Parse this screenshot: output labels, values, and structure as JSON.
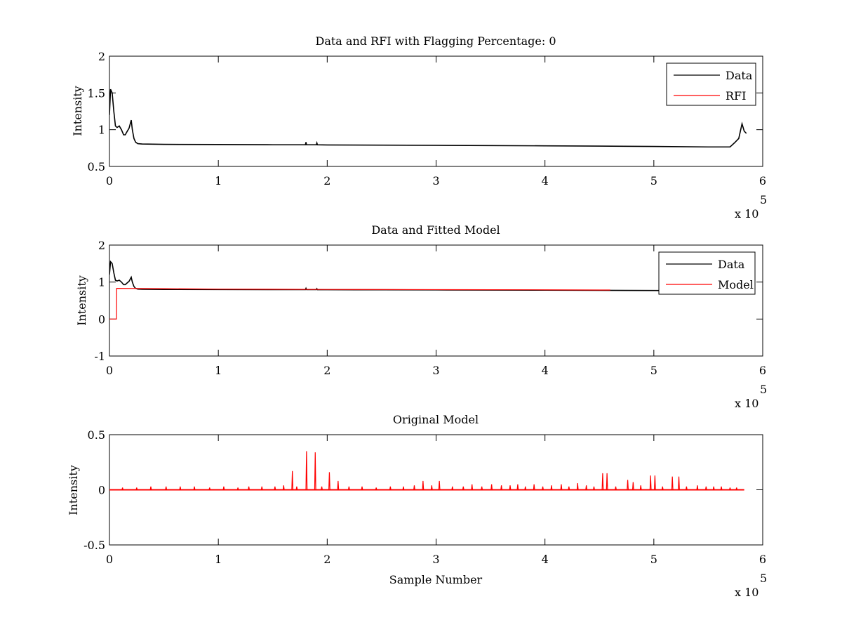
{
  "figure": {
    "background": "#ffffff",
    "axis_color": "#000000"
  },
  "chart_data": [
    {
      "type": "line",
      "title": "Data and RFI with Flagging Percentage: 0",
      "xlabel": "",
      "ylabel": "Intensity",
      "xlim": [
        0,
        600000
      ],
      "ylim": [
        0.5,
        2
      ],
      "xticks": [
        0,
        1,
        2,
        3,
        4,
        5,
        6
      ],
      "xtick_labels": [
        "0",
        "1",
        "2",
        "3",
        "4",
        "5",
        "6"
      ],
      "yticks": [
        0.5,
        1,
        1.5,
        2
      ],
      "ytick_labels": [
        "0.5",
        "1",
        "1.5",
        "2"
      ],
      "x_exponent": {
        "base": "x 10",
        "power": "5"
      },
      "grid": false,
      "legend_position": "top-right",
      "legend": [
        {
          "name": "Data",
          "color": "#000000"
        },
        {
          "name": "RFI",
          "color": "#ff0000"
        }
      ],
      "series": [
        {
          "name": "Data",
          "color": "#000000",
          "x": [
            0,
            1000,
            2500,
            4000,
            5500,
            7000,
            9000,
            11000,
            13000,
            14500,
            16000,
            18000,
            20000,
            21000,
            22500,
            24000,
            26000,
            30000,
            50000,
            100000,
            150000,
            180000,
            180500,
            181000,
            190000,
            190500,
            191000,
            200000,
            250000,
            300000,
            350000,
            400000,
            450000,
            500000,
            550000,
            570000,
            574000,
            578000,
            581000,
            583000,
            585000
          ],
          "y": [
            1.2,
            1.55,
            1.5,
            1.25,
            1.05,
            1.03,
            1.05,
            1.0,
            0.93,
            0.93,
            0.97,
            1.02,
            1.13,
            1.0,
            0.88,
            0.83,
            0.81,
            0.805,
            0.8,
            0.798,
            0.795,
            0.795,
            0.83,
            0.795,
            0.795,
            0.82,
            0.794,
            0.792,
            0.79,
            0.787,
            0.784,
            0.78,
            0.776,
            0.772,
            0.765,
            0.765,
            0.82,
            0.88,
            1.08,
            0.98,
            0.95
          ]
        }
      ]
    },
    {
      "type": "line",
      "title": "Data and Fitted Model",
      "xlabel": "",
      "ylabel": "Intensity",
      "xlim": [
        0,
        600000
      ],
      "ylim": [
        -1,
        2
      ],
      "xticks": [
        0,
        1,
        2,
        3,
        4,
        5,
        6
      ],
      "xtick_labels": [
        "0",
        "1",
        "2",
        "3",
        "4",
        "5",
        "6"
      ],
      "yticks": [
        -1,
        0,
        1,
        2
      ],
      "ytick_labels": [
        "-1",
        "0",
        "1",
        "2"
      ],
      "x_exponent": {
        "base": "x 10",
        "power": "5"
      },
      "grid": false,
      "legend_position": "top-right",
      "legend": [
        {
          "name": "Data",
          "color": "#000000"
        },
        {
          "name": "Model",
          "color": "#ff0000"
        }
      ],
      "series": [
        {
          "name": "Data",
          "color": "#000000",
          "x": [
            0,
            1000,
            2500,
            4000,
            5500,
            7000,
            9000,
            11000,
            13000,
            14500,
            16000,
            18000,
            20000,
            21000,
            22500,
            24000,
            26000,
            30000,
            50000,
            100000,
            150000,
            180000,
            180500,
            181000,
            190000,
            190500,
            191000,
            200000,
            250000,
            300000,
            350000,
            400000,
            450000,
            500000,
            550000
          ],
          "y": [
            1.2,
            1.55,
            1.5,
            1.25,
            1.05,
            1.03,
            1.05,
            1.0,
            0.93,
            0.93,
            0.97,
            1.02,
            1.13,
            1.0,
            0.88,
            0.83,
            0.81,
            0.805,
            0.8,
            0.798,
            0.795,
            0.795,
            0.83,
            0.795,
            0.795,
            0.82,
            0.794,
            0.792,
            0.79,
            0.787,
            0.784,
            0.78,
            0.776,
            0.772,
            0.765
          ]
        },
        {
          "name": "Model",
          "color": "#ff0000",
          "x": [
            0,
            6500,
            6600,
            50000,
            100000,
            200000,
            300000,
            400000,
            450000,
            460000
          ],
          "y": [
            0,
            0,
            0.83,
            0.82,
            0.81,
            0.8,
            0.795,
            0.79,
            0.785,
            0.785
          ]
        }
      ]
    },
    {
      "type": "line",
      "title": "Original Model",
      "xlabel": "Sample Number",
      "ylabel": "Intensity",
      "xlim": [
        0,
        600000
      ],
      "ylim": [
        -0.5,
        0.5
      ],
      "xticks": [
        0,
        1,
        2,
        3,
        4,
        5,
        6
      ],
      "xtick_labels": [
        "0",
        "1",
        "2",
        "3",
        "4",
        "5",
        "6"
      ],
      "yticks": [
        -0.5,
        0,
        0.5
      ],
      "ytick_labels": [
        "-0.5",
        "0",
        "0.5"
      ],
      "x_exponent": {
        "base": "x 10",
        "power": "5"
      },
      "grid": false,
      "series": [
        {
          "name": "",
          "color": "#ff0000",
          "baseline": 0,
          "x_end": 583000,
          "spikes": [
            [
              168000,
              0.17
            ],
            [
              181000,
              0.35
            ],
            [
              189000,
              0.34
            ],
            [
              202000,
              0.16
            ],
            [
              210000,
              0.08
            ],
            [
              288000,
              0.08
            ],
            [
              303000,
              0.08
            ],
            [
              333000,
              0.05
            ],
            [
              351000,
              0.05
            ],
            [
              375000,
              0.05
            ],
            [
              390000,
              0.05
            ],
            [
              415000,
              0.05
            ],
            [
              430000,
              0.06
            ],
            [
              453000,
              0.15
            ],
            [
              457000,
              0.15
            ],
            [
              476000,
              0.09
            ],
            [
              481000,
              0.07
            ],
            [
              497000,
              0.13
            ],
            [
              501000,
              0.13
            ],
            [
              517000,
              0.12
            ],
            [
              523000,
              0.12
            ],
            [
              540000,
              0.04
            ],
            [
              12000,
              0.02
            ],
            [
              25000,
              0.02
            ],
            [
              38000,
              0.03
            ],
            [
              52000,
              0.03
            ],
            [
              65000,
              0.03
            ],
            [
              78000,
              0.03
            ],
            [
              92000,
              0.02
            ],
            [
              105000,
              0.03
            ],
            [
              118000,
              0.02
            ],
            [
              128000,
              0.03
            ],
            [
              140000,
              0.03
            ],
            [
              152000,
              0.03
            ],
            [
              160000,
              0.04
            ],
            [
              172000,
              0.03
            ],
            [
              195000,
              0.03
            ],
            [
              220000,
              0.03
            ],
            [
              232000,
              0.03
            ],
            [
              245000,
              0.02
            ],
            [
              258000,
              0.03
            ],
            [
              270000,
              0.03
            ],
            [
              280000,
              0.04
            ],
            [
              296000,
              0.04
            ],
            [
              315000,
              0.03
            ],
            [
              325000,
              0.03
            ],
            [
              342000,
              0.03
            ],
            [
              360000,
              0.04
            ],
            [
              368000,
              0.04
            ],
            [
              382000,
              0.03
            ],
            [
              398000,
              0.03
            ],
            [
              406000,
              0.04
            ],
            [
              422000,
              0.03
            ],
            [
              438000,
              0.04
            ],
            [
              445000,
              0.03
            ],
            [
              465000,
              0.03
            ],
            [
              488000,
              0.04
            ],
            [
              508000,
              0.03
            ],
            [
              530000,
              0.03
            ],
            [
              548000,
              0.03
            ],
            [
              555000,
              0.03
            ],
            [
              562000,
              0.03
            ],
            [
              570000,
              0.02
            ],
            [
              576000,
              0.02
            ]
          ]
        }
      ]
    }
  ]
}
